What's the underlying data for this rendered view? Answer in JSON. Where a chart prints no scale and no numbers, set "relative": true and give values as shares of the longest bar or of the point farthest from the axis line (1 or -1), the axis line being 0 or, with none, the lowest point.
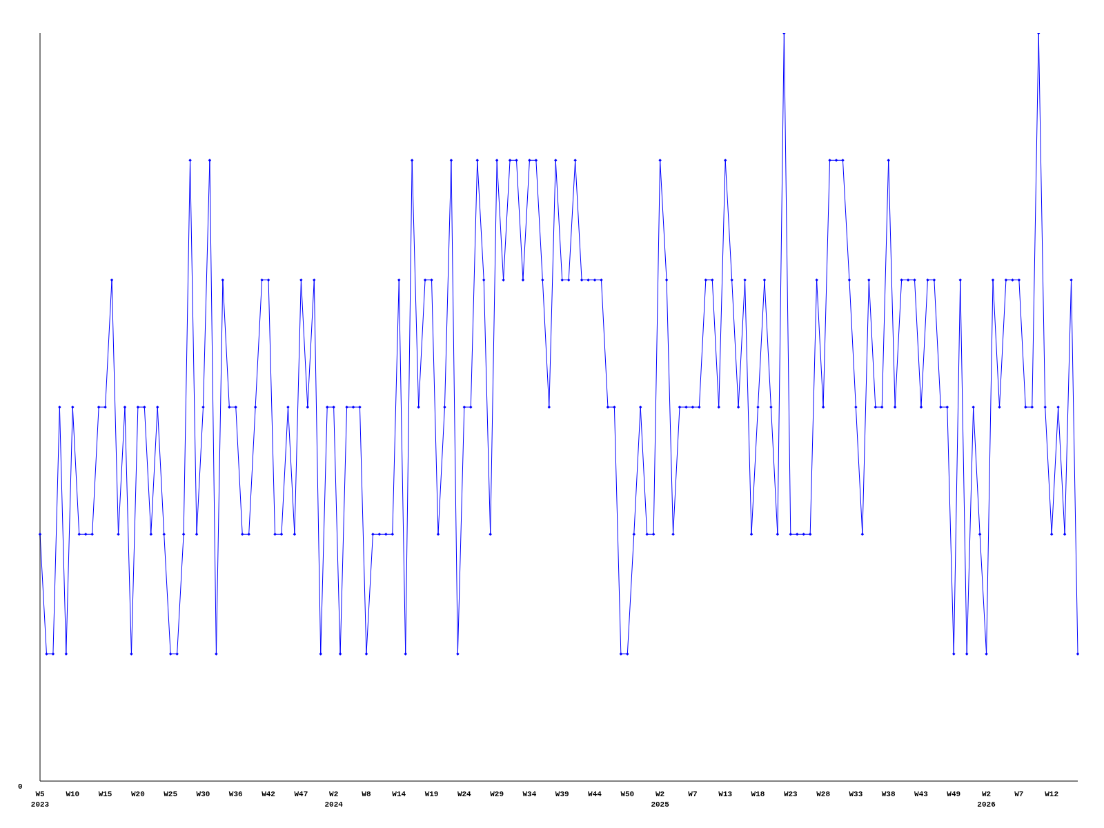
{
  "chart_data": {
    "type": "line",
    "relative": true,
    "annotations": [
      "0"
    ],
    "color": "#0000ff",
    "marker": "diamond",
    "grid": false,
    "legend": false,
    "categories": [
      "W5\n2023",
      null,
      null,
      null,
      null,
      "W10",
      null,
      null,
      null,
      null,
      "W15",
      null,
      null,
      null,
      null,
      "W20",
      null,
      null,
      null,
      null,
      "W25",
      null,
      null,
      null,
      null,
      "W30",
      null,
      null,
      null,
      null,
      "W36",
      null,
      null,
      null,
      null,
      "W42",
      null,
      null,
      null,
      null,
      "W47",
      null,
      null,
      null,
      null,
      "W2\n2024",
      null,
      null,
      null,
      null,
      "W8",
      null,
      null,
      null,
      null,
      "W14",
      null,
      null,
      null,
      null,
      "W19",
      null,
      null,
      null,
      null,
      "W24",
      null,
      null,
      null,
      null,
      "W29",
      null,
      null,
      null,
      null,
      "W34",
      null,
      null,
      null,
      null,
      "W39",
      null,
      null,
      null,
      null,
      "W44",
      null,
      null,
      null,
      null,
      "W50",
      null,
      null,
      null,
      null,
      "W2\n2025",
      null,
      null,
      null,
      null,
      "W7",
      null,
      null,
      null,
      null,
      "W13",
      null,
      null,
      null,
      null,
      "W18",
      null,
      null,
      null,
      null,
      "W23",
      null,
      null,
      null,
      null,
      "W28",
      null,
      null,
      null,
      null,
      "W33",
      null,
      null,
      null,
      null,
      "W38",
      null,
      null,
      null,
      null,
      "W43",
      null,
      null,
      null,
      null,
      "W49",
      null,
      null,
      null,
      null,
      "W2\n2026",
      null,
      null,
      null,
      null,
      "W7",
      null,
      null,
      null,
      null,
      "W12",
      null,
      null,
      null,
      null
    ],
    "values": [
      0.33,
      0.17,
      0.17,
      0.5,
      0.17,
      0.5,
      0.33,
      0.33,
      0.33,
      0.5,
      0.5,
      0.67,
      0.33,
      0.5,
      0.17,
      0.5,
      0.5,
      0.33,
      0.5,
      0.33,
      0.17,
      0.17,
      0.33,
      0.83,
      0.33,
      0.5,
      0.83,
      0.17,
      0.67,
      0.5,
      0.5,
      0.33,
      0.33,
      0.5,
      0.67,
      0.67,
      0.33,
      0.33,
      0.5,
      0.33,
      0.67,
      0.5,
      0.67,
      0.17,
      0.5,
      0.5,
      0.17,
      0.5,
      0.5,
      0.5,
      0.17,
      0.33,
      0.33,
      0.33,
      0.33,
      0.67,
      0.17,
      0.83,
      0.5,
      0.67,
      0.67,
      0.33,
      0.5,
      0.83,
      0.17,
      0.5,
      0.5,
      0.83,
      0.67,
      0.33,
      0.83,
      0.67,
      0.83,
      0.83,
      0.67,
      0.83,
      0.83,
      0.67,
      0.5,
      0.83,
      0.67,
      0.67,
      0.83,
      0.67,
      0.67,
      0.67,
      0.67,
      0.5,
      0.5,
      0.17,
      0.17,
      0.33,
      0.5,
      0.33,
      0.33,
      0.83,
      0.67,
      0.33,
      0.5,
      0.5,
      0.5,
      0.5,
      0.67,
      0.67,
      0.5,
      0.83,
      0.67,
      0.5,
      0.67,
      0.33,
      0.5,
      0.67,
      0.5,
      0.33,
      1,
      0.33,
      0.33,
      0.33,
      0.33,
      0.67,
      0.5,
      0.83,
      0.83,
      0.83,
      0.67,
      0.5,
      0.33,
      0.67,
      0.5,
      0.5,
      0.83,
      0.5,
      0.67,
      0.67,
      0.67,
      0.5,
      0.67,
      0.67,
      0.5,
      0.5,
      0.17,
      0.67,
      0.17,
      0.5,
      0.33,
      0.17,
      0.67,
      0.5,
      0.67,
      0.67,
      0.67,
      0.5,
      0.5,
      1,
      0.5,
      0.33,
      0.5,
      0.33,
      0.67,
      0.17
    ]
  }
}
